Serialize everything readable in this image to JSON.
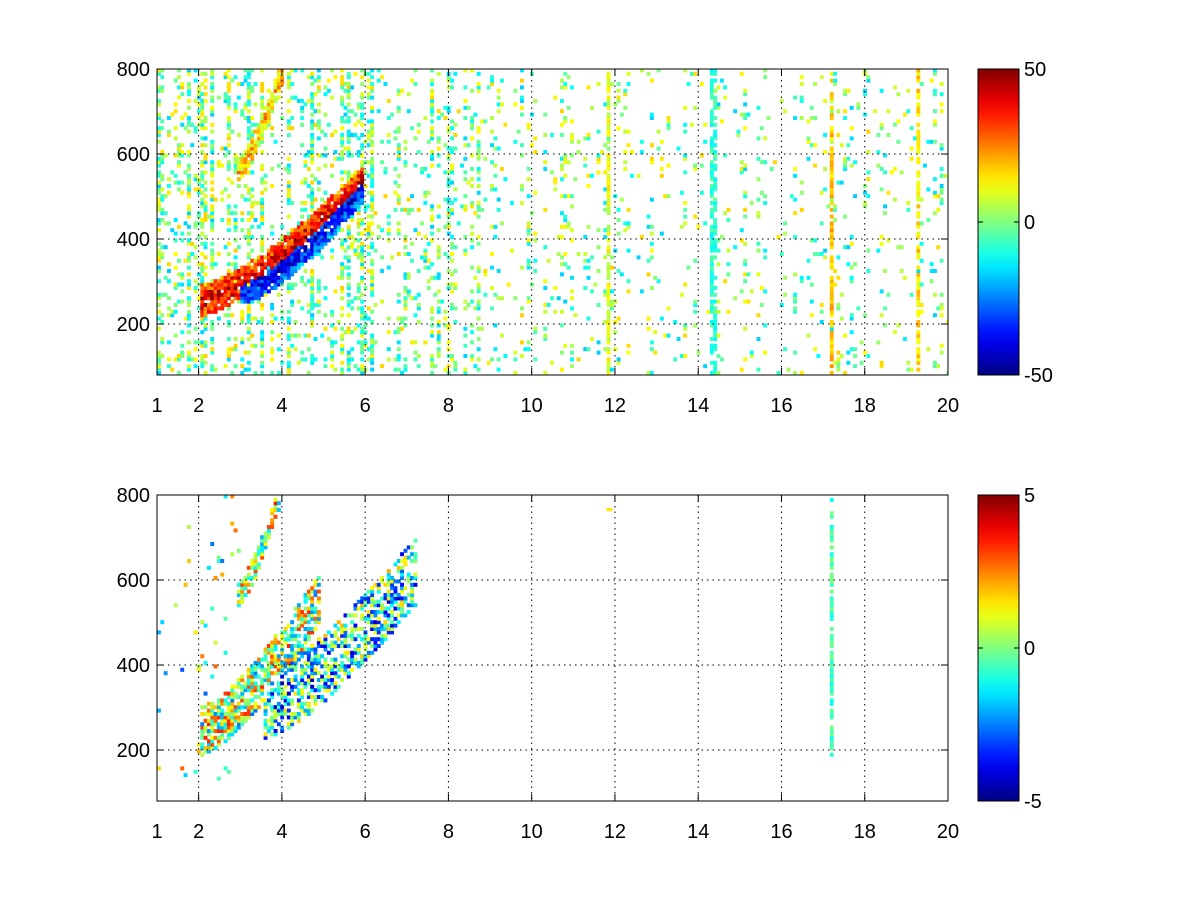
{
  "figure": {
    "background": "#ffffff"
  },
  "chart_data": [
    {
      "type": "heatmap",
      "title": "",
      "xlabel": "",
      "ylabel": "",
      "xlim": [
        1,
        20
      ],
      "ylim": [
        80,
        800
      ],
      "xticks": [
        "1",
        "2",
        "4",
        "6",
        "8",
        "10",
        "12",
        "14",
        "16",
        "18",
        "20"
      ],
      "yticks": [
        "200",
        "400",
        "600",
        "800"
      ],
      "grid": true,
      "colormap": "jet",
      "colorbar": {
        "min": -50,
        "max": 50,
        "ticks": [
          "50",
          "0",
          "-50"
        ]
      },
      "structure": {
        "bands": [
          {
            "name": "upper-branch",
            "x_start": 2.9,
            "y_start": 560,
            "x_end": 4.0,
            "y_end": 800,
            "value": 20,
            "width_y": 28
          },
          {
            "name": "main-positive-branch",
            "x_start": 2.0,
            "y_start": 250,
            "x_end": 5.9,
            "y_end": 530,
            "value": 42,
            "width_y": 38
          },
          {
            "name": "negative-branch",
            "x_start": 3.0,
            "y_start": 280,
            "x_end": 5.9,
            "y_end": 520,
            "value": -40,
            "width_y": 40
          }
        ],
        "vertical_streaks": [
          {
            "x": 17.15,
            "value": 18
          },
          {
            "x": 19.25,
            "value": 15
          },
          {
            "x": 11.8,
            "value": 10
          },
          {
            "x": 14.3,
            "value": -8
          }
        ]
      }
    },
    {
      "type": "heatmap",
      "title": "",
      "xlabel": "",
      "ylabel": "",
      "xlim": [
        1,
        20
      ],
      "ylim": [
        80,
        800
      ],
      "xticks": [
        "1",
        "2",
        "4",
        "6",
        "8",
        "10",
        "12",
        "14",
        "16",
        "18",
        "20"
      ],
      "yticks": [
        "200",
        "400",
        "600",
        "800"
      ],
      "grid": true,
      "colormap": "jet",
      "colorbar": {
        "min": -5,
        "max": 5,
        "ticks": [
          "5",
          "0",
          "-5"
        ]
      },
      "structure": {
        "bands": [
          {
            "name": "upper-branch",
            "x_start": 2.9,
            "y_start": 560,
            "x_end": 3.9,
            "y_end": 790,
            "value": 0.8,
            "width_y": 30
          },
          {
            "name": "main-branch",
            "x_start": 2.0,
            "y_start": 240,
            "x_end": 4.9,
            "y_end": 560,
            "value": 0.5,
            "width_y": 60
          },
          {
            "name": "mixed-branch",
            "x_start": 3.5,
            "y_start": 300,
            "x_end": 7.2,
            "y_end": 620,
            "value": -1.5,
            "width_y": 80
          }
        ],
        "vertical_streaks": [
          {
            "x": 17.15,
            "y_min": 170,
            "y_max": 790,
            "value": -0.6
          }
        ],
        "isolated_points": [
          {
            "x": 11.8,
            "y": 760,
            "value": 1.5
          }
        ]
      }
    }
  ]
}
